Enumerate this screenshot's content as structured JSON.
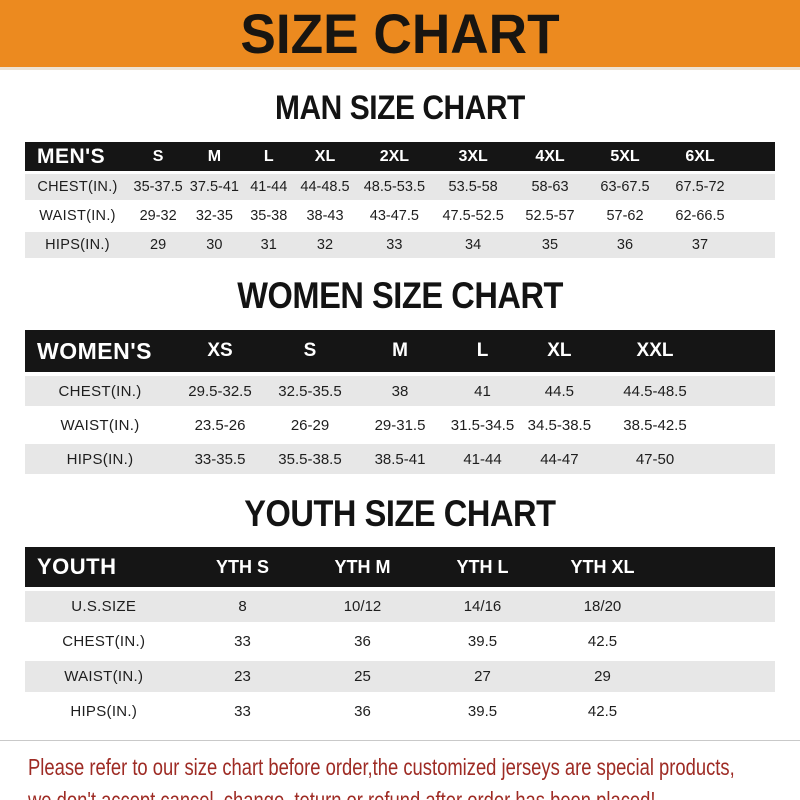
{
  "banner": {
    "title": "SIZE CHART",
    "bg_color": "#EC8A1F",
    "text_color": "#181511"
  },
  "sections": [
    {
      "title": "MAN SIZE CHART",
      "header_label": "MEN'S",
      "columns": [
        "S",
        "M",
        "L",
        "XL",
        "2XL",
        "3XL",
        "4XL",
        "5XL",
        "6XL"
      ],
      "rows": [
        {
          "label": "CHEST(IN.)",
          "values": [
            "35-37.5",
            "37.5-41",
            "41-44",
            "44-48.5",
            "48.5-53.5",
            "53.5-58",
            "58-63",
            "63-67.5",
            "67.5-72"
          ]
        },
        {
          "label": "WAIST(IN.)",
          "values": [
            "29-32",
            "32-35",
            "35-38",
            "38-43",
            "43-47.5",
            "47.5-52.5",
            "52.5-57",
            "57-62",
            "62-66.5"
          ]
        },
        {
          "label": "HIPS(IN.)",
          "values": [
            "29",
            "30",
            "31",
            "32",
            "33",
            "34",
            "35",
            "36",
            "37"
          ]
        }
      ]
    },
    {
      "title": "WOMEN SIZE CHART",
      "header_label": "WOMEN'S",
      "columns": [
        "XS",
        "S",
        "M",
        "L",
        "XL",
        "XXL"
      ],
      "rows": [
        {
          "label": "CHEST(IN.)",
          "values": [
            "29.5-32.5",
            "32.5-35.5",
            "38",
            "41",
            "44.5",
            "44.5-48.5"
          ]
        },
        {
          "label": "WAIST(IN.)",
          "values": [
            "23.5-26",
            "26-29",
            "29-31.5",
            "31.5-34.5",
            "34.5-38.5",
            "38.5-42.5"
          ]
        },
        {
          "label": "HIPS(IN.)",
          "values": [
            "33-35.5",
            "35.5-38.5",
            "38.5-41",
            "41-44",
            "44-47",
            "47-50"
          ]
        }
      ]
    },
    {
      "title": "YOUTH SIZE CHART",
      "header_label": "YOUTH",
      "columns": [
        "YTH S",
        "YTH M",
        "YTH L",
        "YTH XL"
      ],
      "rows": [
        {
          "label": "U.S.SIZE",
          "values": [
            "8",
            "10/12",
            "14/16",
            "18/20"
          ]
        },
        {
          "label": "CHEST(IN.)",
          "values": [
            "33",
            "36",
            "39.5",
            "42.5"
          ]
        },
        {
          "label": "WAIST(IN.)",
          "values": [
            "23",
            "25",
            "27",
            "29"
          ]
        },
        {
          "label": "HIPS(IN.)",
          "values": [
            "33",
            "36",
            "39.5",
            "42.5"
          ]
        }
      ]
    }
  ],
  "footer": {
    "line1": "Please refer to our size chart before order,the customized jerseys are special products,",
    "line2": "we don't accept cancel, change, teturn or refund after order has been placed!",
    "text_color": "#9E2B24"
  },
  "colors": {
    "header_bar": "#151515",
    "row_stripe": "#E7E7E7",
    "row_alt": "#FFFFFF"
  }
}
